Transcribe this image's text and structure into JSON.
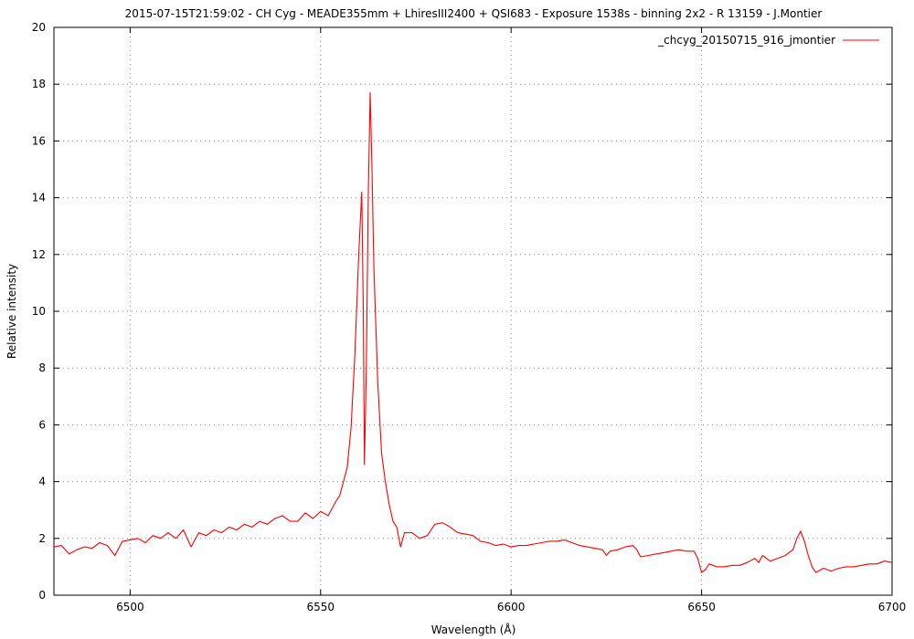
{
  "chart_data": {
    "type": "line",
    "title": "2015-07-15T21:59:02 - CH Cyg - MEADE355mm + LhiresIII2400 + QSI683 - Exposure 1538s - binning 2x2 - R 13159 - J.Montier",
    "xlabel": "Wavelength (Å)",
    "ylabel": "Relative intensity",
    "xlim": [
      6480,
      6700
    ],
    "ylim": [
      0,
      20
    ],
    "xticks": [
      6500,
      6550,
      6600,
      6650,
      6700
    ],
    "yticks": [
      0,
      2,
      4,
      6,
      8,
      10,
      12,
      14,
      16,
      18,
      20
    ],
    "grid": true,
    "legend_position": "top-right",
    "series": [
      {
        "name": "_chcyg_20150715_916_jmontier",
        "color": "#ff0000",
        "x": [
          6480,
          6482,
          6484,
          6486,
          6488,
          6490,
          6492,
          6494,
          6496,
          6498,
          6500,
          6502,
          6504,
          6506,
          6508,
          6510,
          6512,
          6514,
          6516,
          6518,
          6520,
          6522,
          6524,
          6526,
          6528,
          6530,
          6532,
          6534,
          6536,
          6538,
          6540,
          6542,
          6544,
          6546,
          6548,
          6550,
          6552,
          6554,
          6555,
          6556,
          6557,
          6558,
          6559,
          6560,
          6560.8,
          6561.2,
          6561.5,
          6562,
          6562.5,
          6563,
          6563.5,
          6564,
          6565,
          6566,
          6567,
          6568,
          6569,
          6570,
          6571,
          6572,
          6574,
          6576,
          6578,
          6580,
          6582,
          6584,
          6586,
          6588,
          6590,
          6592,
          6594,
          6596,
          6598,
          6600,
          6602,
          6604,
          6606,
          6608,
          6610,
          6612,
          6614,
          6616,
          6618,
          6620,
          6622,
          6624,
          6625,
          6626,
          6628,
          6630,
          6632,
          6633,
          6634,
          6636,
          6638,
          6640,
          6642,
          6644,
          6646,
          6648,
          6649,
          6650,
          6651,
          6652,
          6654,
          6656,
          6658,
          6660,
          6662,
          6664,
          6665,
          6666,
          6668,
          6670,
          6672,
          6674,
          6675,
          6676,
          6677,
          6678,
          6679,
          6680,
          6682,
          6684,
          6686,
          6688,
          6690,
          6692,
          6694,
          6696,
          6698,
          6700
        ],
        "y": [
          1.7,
          1.75,
          1.45,
          1.6,
          1.7,
          1.65,
          1.85,
          1.75,
          1.4,
          1.9,
          1.95,
          2.0,
          1.85,
          2.1,
          2.0,
          2.2,
          2.0,
          2.3,
          1.7,
          2.2,
          2.1,
          2.3,
          2.2,
          2.4,
          2.3,
          2.5,
          2.4,
          2.6,
          2.5,
          2.7,
          2.8,
          2.6,
          2.6,
          2.9,
          2.7,
          2.95,
          2.8,
          3.3,
          3.5,
          4.0,
          4.5,
          5.9,
          8.5,
          12.0,
          14.2,
          10.0,
          4.6,
          8.0,
          14.0,
          17.7,
          15.0,
          11.5,
          7.5,
          5.0,
          4.0,
          3.2,
          2.6,
          2.4,
          1.7,
          2.2,
          2.2,
          2.0,
          2.1,
          2.5,
          2.55,
          2.4,
          2.2,
          2.15,
          2.1,
          1.9,
          1.85,
          1.75,
          1.8,
          1.7,
          1.75,
          1.75,
          1.8,
          1.85,
          1.9,
          1.9,
          1.95,
          1.85,
          1.75,
          1.7,
          1.65,
          1.6,
          1.4,
          1.55,
          1.6,
          1.7,
          1.75,
          1.6,
          1.35,
          1.4,
          1.45,
          1.5,
          1.55,
          1.6,
          1.55,
          1.55,
          1.3,
          0.8,
          0.9,
          1.1,
          1.0,
          1.0,
          1.05,
          1.05,
          1.15,
          1.3,
          1.15,
          1.4,
          1.2,
          1.3,
          1.4,
          1.6,
          2.0,
          2.25,
          1.9,
          1.4,
          1.0,
          0.8,
          0.95,
          0.85,
          0.95,
          1.0,
          1.0,
          1.05,
          1.1,
          1.1,
          1.2,
          1.15
        ]
      }
    ]
  }
}
